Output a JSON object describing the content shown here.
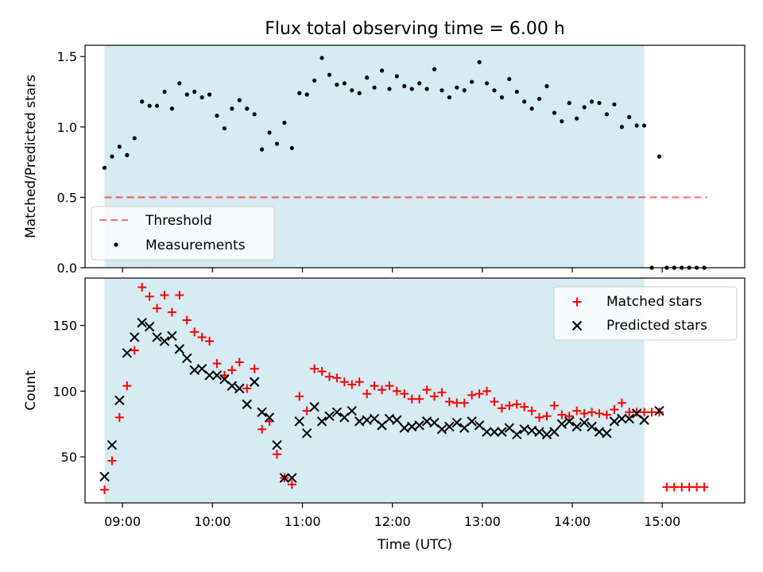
{
  "chart_data": {
    "type": "scatter",
    "title": "Flux total observing time = 6.00 h",
    "xlabel": "Time (UTC)",
    "x_ticks": [
      "09:00",
      "10:00",
      "11:00",
      "12:00",
      "13:00",
      "14:00",
      "15:00"
    ],
    "x_tick_hours": [
      9,
      10,
      11,
      12,
      13,
      14,
      15
    ],
    "xlim": [
      "08:35",
      "15:55"
    ],
    "observing_window": [
      "08:48",
      "14:48"
    ],
    "colors": {
      "window": "#add8e6",
      "threshold": "#ff0000",
      "matched": "#ff0000",
      "predicted": "#000000",
      "measurements": "#000000"
    },
    "panels": [
      {
        "ylabel": "Matched/Predicted stars",
        "ylim": [
          0,
          1.58
        ],
        "y_ticks": [
          "0.0",
          "0.5",
          "1.0",
          "1.5"
        ],
        "y_tick_values": [
          0,
          0.5,
          1.0,
          1.5
        ],
        "legend_position": "lower left",
        "threshold": {
          "name": "Threshold",
          "value": 0.5,
          "x_range": [
            "08:48",
            "15:30"
          ]
        },
        "series": [
          {
            "name": "Measurements",
            "x": [
              "08:48",
              "08:53",
              "08:58",
              "09:03",
              "09:08",
              "09:13",
              "09:18",
              "09:23",
              "09:28",
              "09:33",
              "09:38",
              "09:43",
              "09:48",
              "09:53",
              "09:58",
              "10:03",
              "10:08",
              "10:13",
              "10:18",
              "10:23",
              "10:28",
              "10:33",
              "10:38",
              "10:43",
              "10:48",
              "10:53",
              "10:58",
              "11:03",
              "11:08",
              "11:13",
              "11:18",
              "11:23",
              "11:28",
              "11:33",
              "11:38",
              "11:43",
              "11:48",
              "11:53",
              "11:58",
              "12:03",
              "12:08",
              "12:13",
              "12:18",
              "12:23",
              "12:28",
              "12:33",
              "12:38",
              "12:43",
              "12:48",
              "12:53",
              "12:58",
              "13:03",
              "13:08",
              "13:13",
              "13:18",
              "13:23",
              "13:28",
              "13:33",
              "13:38",
              "13:43",
              "13:48",
              "13:53",
              "13:58",
              "14:03",
              "14:08",
              "14:13",
              "14:18",
              "14:23",
              "14:28",
              "14:33",
              "14:38",
              "14:43",
              "14:48",
              "14:58",
              "14:53",
              "15:03",
              "15:08",
              "15:13",
              "15:18",
              "15:23",
              "15:28"
            ],
            "y": [
              0.71,
              0.79,
              0.86,
              0.8,
              0.92,
              1.18,
              1.15,
              1.15,
              1.25,
              1.13,
              1.31,
              1.23,
              1.25,
              1.21,
              1.23,
              1.08,
              0.99,
              1.13,
              1.19,
              1.13,
              1.09,
              0.84,
              0.96,
              0.88,
              1.03,
              0.85,
              1.24,
              1.23,
              1.33,
              1.49,
              1.37,
              1.3,
              1.31,
              1.26,
              1.24,
              1.35,
              1.28,
              1.4,
              1.27,
              1.36,
              1.29,
              1.27,
              1.31,
              1.27,
              1.41,
              1.26,
              1.21,
              1.28,
              1.26,
              1.32,
              1.46,
              1.31,
              1.26,
              1.21,
              1.34,
              1.25,
              1.18,
              1.13,
              1.2,
              1.29,
              1.1,
              1.04,
              1.17,
              1.06,
              1.14,
              1.18,
              1.17,
              1.09,
              1.16,
              1.0,
              1.07,
              1.01,
              1.01,
              0.79,
              0.0,
              0.0,
              0.0,
              0.0,
              0.0,
              0.0,
              0.0
            ]
          }
        ]
      },
      {
        "ylabel": "Count",
        "ylim": [
          15,
          186
        ],
        "y_ticks": [
          "50",
          "100",
          "150"
        ],
        "y_tick_values": [
          50,
          100,
          150
        ],
        "legend_position": "upper right",
        "series": [
          {
            "name": "Matched stars",
            "marker": "+",
            "x": [
              "08:48",
              "08:53",
              "08:58",
              "09:03",
              "09:08",
              "09:13",
              "09:18",
              "09:23",
              "09:28",
              "09:33",
              "09:38",
              "09:43",
              "09:48",
              "09:53",
              "09:58",
              "10:03",
              "10:08",
              "10:13",
              "10:18",
              "10:23",
              "10:28",
              "10:33",
              "10:38",
              "10:43",
              "10:48",
              "10:53",
              "10:58",
              "11:03",
              "11:08",
              "11:13",
              "11:18",
              "11:23",
              "11:28",
              "11:33",
              "11:38",
              "11:43",
              "11:48",
              "11:53",
              "11:58",
              "12:03",
              "12:08",
              "12:13",
              "12:18",
              "12:23",
              "12:28",
              "12:33",
              "12:38",
              "12:43",
              "12:48",
              "12:53",
              "12:58",
              "13:03",
              "13:08",
              "13:13",
              "13:18",
              "13:23",
              "13:28",
              "13:33",
              "13:38",
              "13:43",
              "13:48",
              "13:53",
              "13:58",
              "14:03",
              "14:08",
              "14:13",
              "14:18",
              "14:23",
              "14:28",
              "14:33",
              "14:38",
              "14:43",
              "14:48",
              "14:53",
              "14:58",
              "15:03",
              "15:08",
              "15:13",
              "15:18",
              "15:23",
              "15:28"
            ],
            "y": [
              25,
              47,
              80,
              104,
              131,
              179,
              172,
              163,
              173,
              160,
              173,
              154,
              145,
              141,
              138,
              121,
              112,
              116,
              122,
              102,
              117,
              71,
              77,
              52,
              34,
              29,
              96,
              85,
              117,
              115,
              111,
              110,
              107,
              105,
              107,
              98,
              104,
              101,
              104,
              100,
              98,
              94,
              94,
              101,
              96,
              99,
              92,
              91,
              91,
              97,
              98,
              100,
              92,
              87,
              89,
              90,
              88,
              85,
              80,
              81,
              89,
              82,
              81,
              85,
              83,
              84,
              83,
              82,
              86,
              91,
              84,
              84,
              84,
              84,
              84,
              27,
              27,
              27,
              27,
              27,
              27
            ]
          },
          {
            "name": "Predicted stars",
            "marker": "x",
            "x": [
              "08:48",
              "08:53",
              "08:58",
              "09:03",
              "09:08",
              "09:13",
              "09:18",
              "09:23",
              "09:28",
              "09:33",
              "09:38",
              "09:43",
              "09:48",
              "09:53",
              "09:58",
              "10:03",
              "10:08",
              "10:13",
              "10:18",
              "10:23",
              "10:28",
              "10:33",
              "10:38",
              "10:43",
              "10:48",
              "10:53",
              "10:58",
              "11:03",
              "11:08",
              "11:13",
              "11:18",
              "11:23",
              "11:28",
              "11:33",
              "11:38",
              "11:43",
              "11:48",
              "11:53",
              "11:58",
              "12:03",
              "12:08",
              "12:13",
              "12:18",
              "12:23",
              "12:28",
              "12:33",
              "12:38",
              "12:43",
              "12:48",
              "12:53",
              "12:58",
              "13:03",
              "13:08",
              "13:13",
              "13:18",
              "13:23",
              "13:28",
              "13:33",
              "13:38",
              "13:43",
              "13:48",
              "13:53",
              "13:58",
              "14:03",
              "14:08",
              "14:13",
              "14:18",
              "14:23",
              "14:28",
              "14:33",
              "14:38",
              "14:43",
              "14:48",
              "14:58"
            ],
            "y": [
              35,
              59,
              93,
              129,
              141,
              152,
              149,
              141,
              138,
              142,
              132,
              125,
              116,
              117,
              112,
              112,
              109,
              104,
              102,
              90,
              107,
              84,
              80,
              59,
              34,
              34,
              77,
              68,
              88,
              77,
              81,
              84,
              80,
              85,
              77,
              78,
              79,
              74,
              79,
              78,
              72,
              73,
              74,
              77,
              76,
              71,
              73,
              76,
              72,
              77,
              74,
              69,
              69,
              69,
              72,
              67,
              71,
              70,
              69,
              67,
              69,
              75,
              77,
              73,
              76,
              73,
              69,
              68,
              77,
              79,
              79,
              83,
              78,
              85
            ]
          }
        ]
      }
    ]
  }
}
